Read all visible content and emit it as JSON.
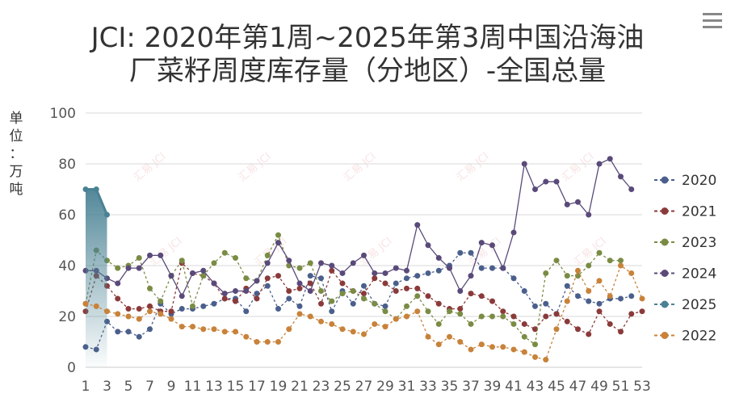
{
  "title_line1": "JCI: 2020年第1周~2025年第3周中国沿海油",
  "title_line2": "厂菜籽周度库存量（分地区）-全国总量",
  "unit_label": "单位：万吨",
  "watermark": "汇易 JCI",
  "menu_icon": "hamburger-menu-icon",
  "chart_data": {
    "type": "line",
    "title": "JCI: 2020年第1周~2025年第3周中国沿海油厂菜籽周度库存量（分地区）-全国总量",
    "ylabel": "单位：万吨",
    "ylim": [
      0,
      100
    ],
    "yticks": [
      0,
      20,
      40,
      60,
      80,
      100
    ],
    "xlim": [
      1,
      53
    ],
    "xticks": [
      1,
      3,
      5,
      7,
      9,
      11,
      13,
      15,
      17,
      19,
      21,
      23,
      25,
      27,
      29,
      31,
      33,
      35,
      37,
      39,
      41,
      43,
      45,
      47,
      49,
      51,
      53
    ],
    "grid": true,
    "legend": "right",
    "series": [
      {
        "name": "2020",
        "color": "#4a5f8c",
        "values": [
          8,
          7,
          18,
          14,
          14,
          12,
          15,
          25,
          21,
          23,
          23,
          24,
          25,
          27,
          27,
          22,
          29,
          32,
          23,
          27,
          24,
          36,
          35,
          22,
          30,
          25,
          32,
          25,
          24,
          33,
          35,
          36,
          37,
          38,
          40,
          45,
          45,
          39,
          39,
          39,
          35,
          30,
          24,
          25,
          21,
          32,
          28,
          26,
          25,
          27,
          27,
          28,
          null
        ]
      },
      {
        "name": "2021",
        "color": "#8b3a3a",
        "values": [
          22,
          36,
          32,
          27,
          23,
          23,
          24,
          22,
          22,
          41,
          37,
          36,
          33,
          27,
          26,
          31,
          27,
          35,
          36,
          30,
          31,
          33,
          25,
          38,
          33,
          30,
          29,
          35,
          33,
          30,
          31,
          31,
          28,
          25,
          23,
          23,
          29,
          28,
          26,
          22,
          20,
          17,
          15,
          20,
          21,
          18,
          15,
          13,
          22,
          17,
          14,
          21,
          22
        ]
      },
      {
        "name": "2023",
        "color": "#7a8c44",
        "values": [
          25,
          46,
          42,
          39,
          40,
          43,
          31,
          26,
          36,
          42,
          24,
          36,
          41,
          45,
          43,
          35,
          34,
          44,
          52,
          40,
          39,
          41,
          30,
          26,
          29,
          30,
          27,
          25,
          22,
          19,
          24,
          28,
          22,
          17,
          22,
          21,
          17,
          20,
          20,
          20,
          17,
          12,
          9,
          37,
          42,
          36,
          36,
          40,
          45,
          42,
          42,
          null,
          null
        ]
      },
      {
        "name": "2024",
        "color": "#5a4a7a",
        "values": [
          38,
          38,
          35,
          33,
          39,
          39,
          44,
          44,
          36,
          28,
          37,
          38,
          33,
          29,
          30,
          30,
          34,
          41,
          49,
          42,
          33,
          30,
          41,
          40,
          37,
          41,
          44,
          37,
          37,
          39,
          38,
          56,
          48,
          43,
          39,
          30,
          36,
          49,
          48,
          39,
          53,
          80,
          70,
          73,
          73,
          64,
          65,
          60,
          80,
          82,
          75,
          70,
          null
        ]
      },
      {
        "name": "2025",
        "color": "#4a8294",
        "values": [
          70,
          70,
          60,
          null,
          null,
          null,
          null,
          null,
          null,
          null,
          null,
          null,
          null,
          null,
          null,
          null,
          null,
          null,
          null,
          null,
          null,
          null,
          null,
          null,
          null,
          null,
          null,
          null,
          null,
          null,
          null,
          null,
          null,
          null,
          null,
          null,
          null,
          null,
          null,
          null,
          null,
          null,
          null,
          null,
          null,
          null,
          null,
          null,
          null,
          null,
          null,
          null,
          null
        ]
      },
      {
        "name": "2022",
        "color": "#c8823a",
        "values": [
          25,
          24,
          22,
          21,
          20,
          19,
          22,
          21,
          19,
          16,
          16,
          15,
          15,
          14,
          14,
          12,
          10,
          10,
          10,
          15,
          21,
          20,
          18,
          17,
          15,
          14,
          13,
          17,
          16,
          19,
          20,
          22,
          12,
          9,
          12,
          10,
          7,
          9,
          8,
          8,
          7,
          6,
          4,
          3,
          15,
          26,
          38,
          30,
          34,
          28,
          40,
          37,
          27
        ]
      }
    ]
  }
}
